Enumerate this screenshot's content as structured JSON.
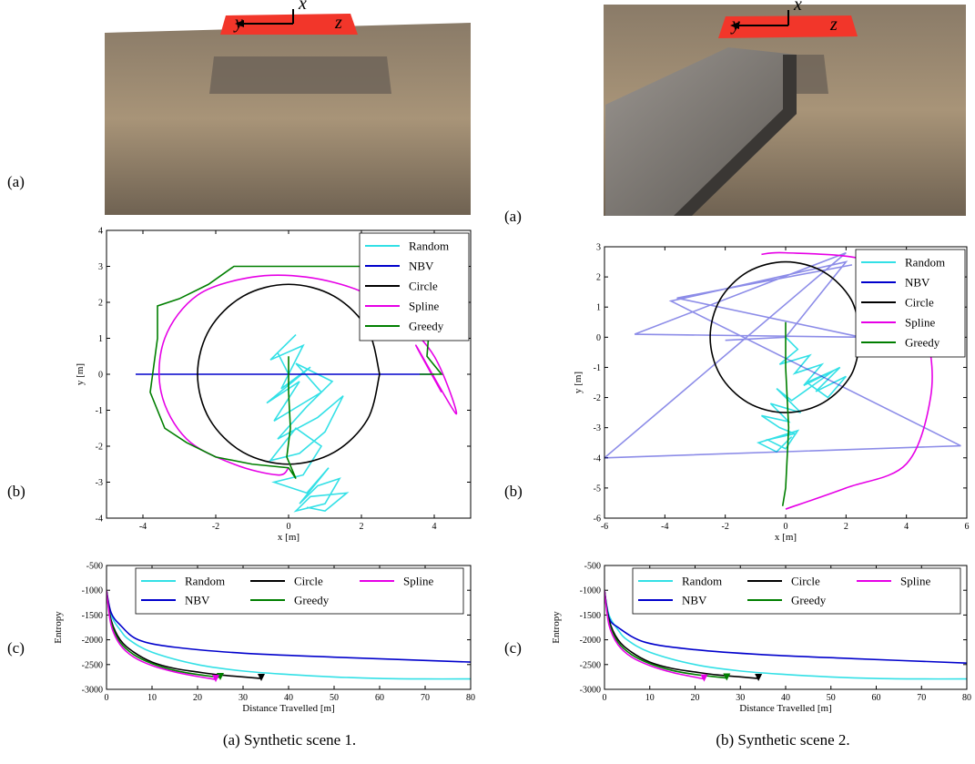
{
  "panels": [
    {
      "labels": [
        "(a)",
        "(b)",
        "(c)"
      ],
      "image_axes": [
        "x",
        "y",
        "z"
      ],
      "caption": "(a) Synthetic scene 1."
    },
    {
      "labels": [
        "(a)",
        "(b)",
        "(c)"
      ],
      "image_axes": [
        "x",
        "y",
        "z"
      ],
      "caption": "(b) Synthetic scene 2."
    }
  ],
  "chart_data": [
    {
      "type": "line",
      "xlabel": "x [m]",
      "ylabel": "y [m]",
      "xlim": [
        -5,
        5
      ],
      "ylim": [
        -4,
        4
      ],
      "xticks": [
        -4,
        -2,
        0,
        2,
        4
      ],
      "yticks": [
        -4,
        -3,
        -2,
        -1,
        0,
        1,
        2,
        3,
        4
      ],
      "legend": "upper right",
      "legend_columns": 1,
      "series": [
        {
          "name": "Random",
          "color": "#33e0e6",
          "smooth": false,
          "x": [
            0,
            -0.3,
            0.2,
            -0.5,
            0.4,
            -0.2,
            0.6,
            -0.6,
            0.3,
            -0.4,
            0.9,
            0.2,
            1.2,
            0.5,
            -0.3,
            0.8,
            1.5,
            1.0,
            0.3,
            -0.5,
            0.2,
            0.9,
            0.4,
            -0.4,
            0.5,
            1.1,
            0.3,
            0.8,
            1.4,
            1.0,
            0.2,
            0.6,
            1.6,
            1.0,
            0.5
          ],
          "y": [
            0,
            0.6,
            1.1,
            0.4,
            0.8,
            -0.4,
            0.2,
            -0.8,
            -0.2,
            -1.3,
            -0.5,
            0.3,
            -0.2,
            -0.9,
            -1.8,
            -1.2,
            -0.6,
            -1.6,
            -2.2,
            -2.4,
            -1.5,
            -2.0,
            -2.8,
            -3.0,
            -3.3,
            -2.6,
            -3.6,
            -3.1,
            -2.9,
            -3.6,
            -3.8,
            -3.4,
            -3.3,
            -3.8,
            -3.7
          ]
        },
        {
          "name": "NBV",
          "color": "#0000cc",
          "smooth": false,
          "x": [
            0,
            3.5,
            -4.2,
            4.0
          ],
          "y": [
            0,
            0,
            0,
            0
          ]
        },
        {
          "name": "Circle",
          "color": "#000000",
          "smooth": true,
          "x": [
            2.5,
            2.17,
            1.25,
            0,
            -1.25,
            -2.17,
            -2.5,
            -2.17,
            -1.25,
            0,
            1.25,
            2.17,
            2.5
          ],
          "y": [
            0,
            1.25,
            2.17,
            2.5,
            2.17,
            1.25,
            0,
            -1.25,
            -2.17,
            -2.5,
            -2.17,
            -1.25,
            0
          ]
        },
        {
          "name": "Spline",
          "color": "#e600e6",
          "smooth": true,
          "x": [
            0,
            -0.3,
            -1.5,
            -2.8,
            -3.5,
            -3.4,
            -2.5,
            -1,
            0.5,
            2,
            3,
            4,
            4.6,
            3.5,
            4.2
          ],
          "y": [
            -2.6,
            -2.8,
            -2.5,
            -1.8,
            -0.5,
            1,
            2.2,
            2.7,
            2.7,
            2.3,
            1.6,
            0.5,
            -1.1,
            0.8,
            -0.5
          ]
        },
        {
          "name": "Greedy",
          "color": "#007f00",
          "smooth": false,
          "x": [
            0,
            0,
            0.05,
            -0.05,
            0.2,
            0,
            -1,
            -2,
            -2.8,
            -3.4,
            -3.8,
            -3.6,
            -3.6,
            -3,
            -2.2,
            -1.5,
            1.5,
            4,
            3.8,
            4.2,
            3.6
          ],
          "y": [
            0.5,
            -0.5,
            -1.5,
            -2.3,
            -2.9,
            -2.6,
            -2.5,
            -2.3,
            -1.9,
            -1.5,
            -0.5,
            1,
            1.9,
            2.1,
            2.5,
            3,
            3,
            3,
            0.5,
            0,
            0
          ]
        }
      ]
    },
    {
      "type": "line",
      "xlabel": "Distance Travelled [m]",
      "ylabel": "Entropy",
      "xlim": [
        0,
        80
      ],
      "ylim": [
        -3000,
        -500
      ],
      "xticks": [
        0,
        10,
        20,
        30,
        40,
        50,
        60,
        70,
        80
      ],
      "yticks": [
        -3000,
        -2500,
        -2000,
        -1500,
        -1000,
        -500
      ],
      "legend": "upper center",
      "legend_columns": 3,
      "series": [
        {
          "name": "Random",
          "color": "#33e0e6",
          "smooth": true,
          "x": [
            0,
            1,
            3,
            5,
            10,
            20,
            30,
            40,
            50,
            60,
            70,
            80
          ],
          "y": [
            -1000,
            -1500,
            -1800,
            -2000,
            -2250,
            -2500,
            -2630,
            -2700,
            -2750,
            -2780,
            -2790,
            -2790
          ]
        },
        {
          "name": "NBV",
          "color": "#0000cc",
          "smooth": true,
          "x": [
            0,
            1,
            3,
            7,
            15,
            30,
            50,
            80
          ],
          "y": [
            -1000,
            -1450,
            -1700,
            -2000,
            -2150,
            -2270,
            -2350,
            -2450
          ]
        },
        {
          "name": "Circle",
          "color": "#000000",
          "smooth": true,
          "end_marker": "triangle",
          "x": [
            0,
            1,
            3,
            6,
            10,
            15,
            20,
            25,
            34
          ],
          "y": [
            -1000,
            -1600,
            -2000,
            -2250,
            -2450,
            -2580,
            -2650,
            -2710,
            -2780
          ]
        },
        {
          "name": "Greedy",
          "color": "#007f00",
          "smooth": true,
          "end_marker": "triangle",
          "x": [
            0,
            1,
            3,
            6,
            10,
            15,
            20,
            25
          ],
          "y": [
            -1000,
            -1650,
            -2050,
            -2300,
            -2480,
            -2620,
            -2700,
            -2760
          ]
        },
        {
          "name": "Spline",
          "color": "#e600e6",
          "smooth": true,
          "end_marker": "triangle",
          "x": [
            0,
            1,
            3,
            6,
            10,
            15,
            20,
            24
          ],
          "y": [
            -1000,
            -1700,
            -2100,
            -2350,
            -2520,
            -2650,
            -2740,
            -2800
          ]
        }
      ]
    },
    {
      "type": "line",
      "xlabel": "x [m]",
      "ylabel": "y [m]",
      "xlim": [
        -6,
        6
      ],
      "ylim": [
        -6,
        3
      ],
      "xticks": [
        -6,
        -4,
        -2,
        0,
        2,
        4,
        6
      ],
      "yticks": [
        -6,
        -5,
        -4,
        -3,
        -2,
        -1,
        0,
        1,
        2,
        3
      ],
      "legend": "upper right",
      "legend_columns": 1,
      "series": [
        {
          "name": "Random",
          "color": "#33e0e6",
          "smooth": false,
          "x": [
            0,
            0.4,
            -0.2,
            0.8,
            0.3,
            1.2,
            0.6,
            1.8,
            1.0,
            2.0,
            1.4,
            0.7,
            1.6,
            0.2,
            -0.3,
            0.5,
            -0.5,
            0.1,
            -0.8,
            -0.2,
            0.3,
            -0.6,
            0.0,
            0.4,
            -0.9,
            -0.3,
            0.2
          ],
          "y": [
            0,
            -0.4,
            -0.9,
            -0.6,
            -1.2,
            -0.9,
            -1.6,
            -1.0,
            -1.8,
            -1.3,
            -2.0,
            -1.5,
            -1.1,
            -2.1,
            -1.7,
            -2.5,
            -2.2,
            -2.8,
            -2.6,
            -3.0,
            -3.2,
            -3.4,
            -3.7,
            -3.1,
            -3.5,
            -3.8,
            -3.3
          ]
        },
        {
          "name": "NBV",
          "color": "#0000cc",
          "smooth": false,
          "opacity": 0.45,
          "x": [
            -2,
            0,
            2,
            -3.8,
            5.8,
            -6,
            2,
            -5,
            2.5,
            -3.6,
            2.2
          ],
          "y": [
            -0.1,
            0,
            2.5,
            1.2,
            -3.6,
            -4,
            2.8,
            0.1,
            0,
            1.3,
            2.4
          ]
        },
        {
          "name": "Circle",
          "color": "#000000",
          "smooth": true,
          "x": [
            2.5,
            2.17,
            1.25,
            0,
            -1.25,
            -2.17,
            -2.5,
            -2.17,
            -1.25,
            0,
            1.25,
            2.17,
            2.5
          ],
          "y": [
            0,
            1.25,
            2.17,
            2.5,
            2.17,
            1.25,
            0,
            -1.25,
            -2.17,
            -2.5,
            -2.17,
            -1.25,
            0
          ]
        },
        {
          "name": "Spline",
          "color": "#e600e6",
          "smooth": true,
          "x": [
            0,
            2,
            4,
            4.8,
            4.7,
            4,
            2.5,
            0,
            -0.8
          ],
          "y": [
            -5.7,
            -5,
            -4.2,
            -2,
            0,
            1.8,
            2.6,
            2.8,
            2.75
          ]
        },
        {
          "name": "Greedy",
          "color": "#007f00",
          "smooth": false,
          "x": [
            0,
            0,
            0.1,
            0,
            -0.1
          ],
          "y": [
            0.5,
            -1,
            -3,
            -5,
            -5.6
          ]
        }
      ]
    },
    {
      "type": "line",
      "xlabel": "Distance Travelled [m]",
      "ylabel": "Entropy",
      "xlim": [
        0,
        80
      ],
      "ylim": [
        -3000,
        -500
      ],
      "xticks": [
        0,
        10,
        20,
        30,
        40,
        50,
        60,
        70,
        80
      ],
      "yticks": [
        -3000,
        -2500,
        -2000,
        -1500,
        -1000,
        -500
      ],
      "legend": "upper center",
      "legend_columns": 3,
      "series": [
        {
          "name": "Random",
          "color": "#33e0e6",
          "smooth": true,
          "x": [
            0,
            1,
            3,
            5,
            10,
            20,
            30,
            40,
            50,
            60,
            70,
            80
          ],
          "y": [
            -1000,
            -1500,
            -1800,
            -2000,
            -2250,
            -2500,
            -2630,
            -2700,
            -2750,
            -2780,
            -2790,
            -2790
          ]
        },
        {
          "name": "NBV",
          "color": "#0000cc",
          "smooth": true,
          "x": [
            0,
            1,
            3,
            9,
            20,
            35,
            55,
            80
          ],
          "y": [
            -1000,
            -1550,
            -1750,
            -2050,
            -2200,
            -2300,
            -2380,
            -2470
          ]
        },
        {
          "name": "Circle",
          "color": "#000000",
          "smooth": true,
          "end_marker": "triangle",
          "x": [
            0,
            1,
            3,
            6,
            10,
            15,
            20,
            25,
            34
          ],
          "y": [
            -1000,
            -1600,
            -2000,
            -2250,
            -2450,
            -2580,
            -2650,
            -2710,
            -2780
          ]
        },
        {
          "name": "Greedy",
          "color": "#007f00",
          "smooth": true,
          "end_marker": "triangle",
          "x": [
            0,
            1,
            3,
            6,
            10,
            15,
            20,
            27
          ],
          "y": [
            -1000,
            -1650,
            -2050,
            -2300,
            -2480,
            -2620,
            -2700,
            -2770
          ]
        },
        {
          "name": "Spline",
          "color": "#e600e6",
          "smooth": true,
          "end_marker": "triangle",
          "x": [
            0,
            1,
            3,
            6,
            10,
            15,
            22
          ],
          "y": [
            -1000,
            -1700,
            -2100,
            -2350,
            -2520,
            -2660,
            -2790
          ]
        }
      ]
    }
  ]
}
